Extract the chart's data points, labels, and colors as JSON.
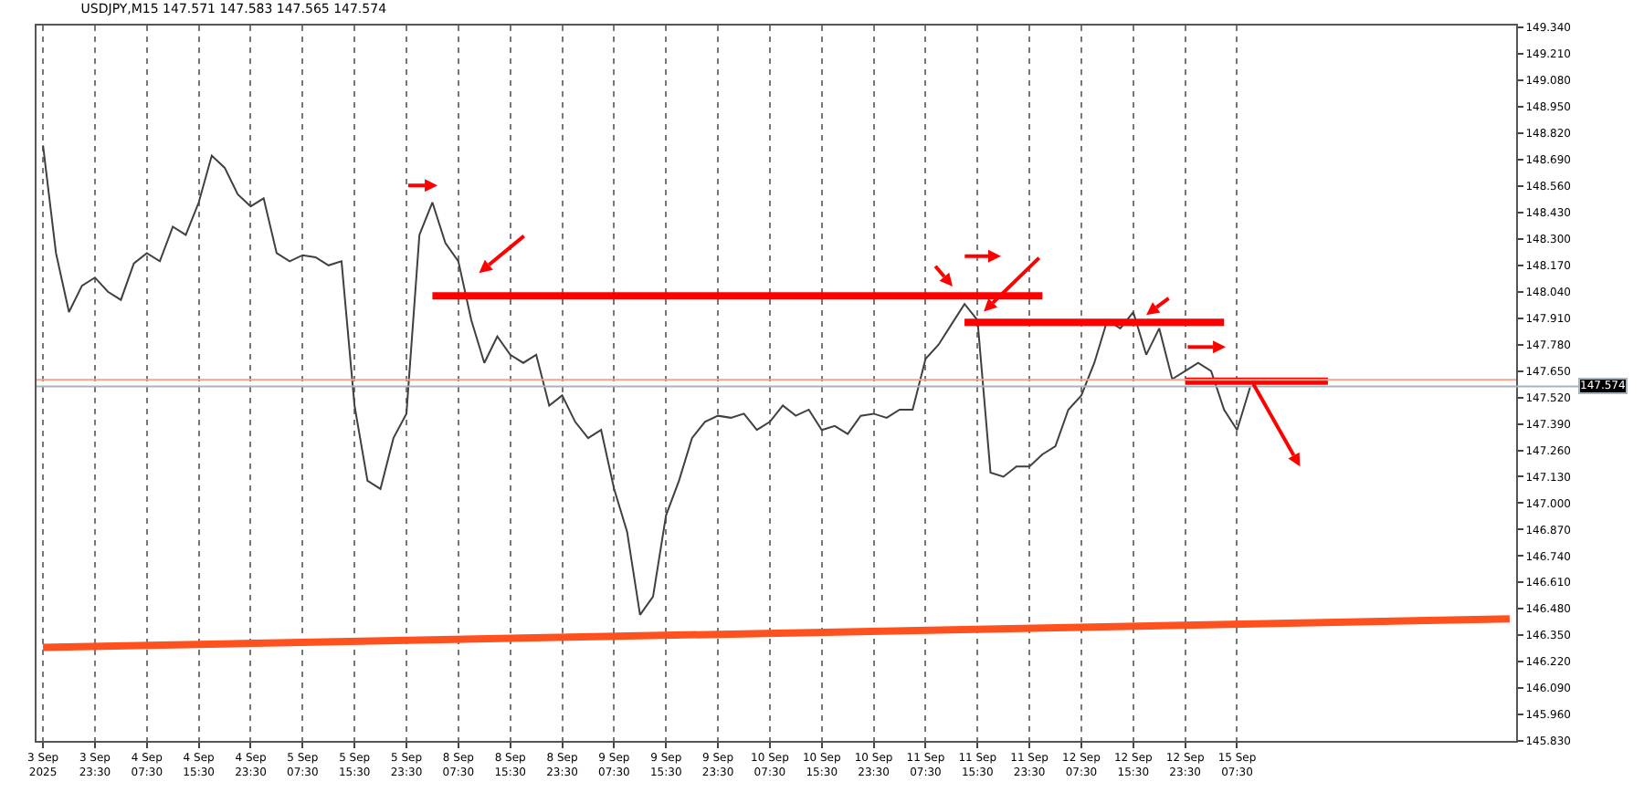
{
  "chart_data": {
    "type": "line",
    "title": "USDJPY,M15 147.571 147.583 147.565 147.574",
    "categories": [
      "3 Sep 2025",
      null,
      null,
      null,
      "3 Sep 23:30",
      null,
      null,
      null,
      "4 Sep 07:30",
      null,
      null,
      null,
      "4 Sep 15:30",
      null,
      null,
      null,
      "4 Sep 23:30",
      null,
      null,
      null,
      "5 Sep 07:30",
      null,
      null,
      null,
      "5 Sep 15:30",
      null,
      null,
      null,
      "5 Sep 23:30",
      null,
      null,
      null,
      "8 Sep 07:30",
      null,
      null,
      null,
      "8 Sep 15:30",
      null,
      null,
      null,
      "8 Sep 23:30",
      null,
      null,
      null,
      "9 Sep 07:30",
      null,
      null,
      null,
      "9 Sep 15:30",
      null,
      null,
      null,
      "9 Sep 23:30",
      null,
      null,
      null,
      "10 Sep 07:30",
      null,
      null,
      null,
      "10 Sep 15:30",
      null,
      null,
      null,
      "10 Sep 23:30",
      null,
      null,
      null,
      "11 Sep 07:30",
      null,
      null,
      null,
      "11 Sep 15:30",
      null,
      null,
      null,
      "11 Sep 23:30",
      null,
      null,
      null,
      "12 Sep 07:30",
      null,
      null,
      null,
      "12 Sep 15:30",
      null,
      null,
      null,
      "12 Sep 23:30",
      null,
      null,
      null,
      "15 Sep 07:30",
      null,
      null,
      null,
      null,
      null,
      null,
      null,
      null,
      null,
      null,
      null,
      null,
      null,
      null,
      null,
      null,
      null,
      null,
      null,
      null,
      null
    ],
    "series": [
      {
        "color": "#404040",
        "values": [
          148.76,
          148.23,
          147.94,
          148.07,
          148.11,
          148.04,
          148.0,
          148.18,
          148.23,
          148.19,
          148.36,
          148.32,
          148.48,
          148.71,
          148.65,
          148.52,
          148.46,
          148.5,
          148.23,
          148.19,
          148.22,
          148.21,
          148.17,
          148.19,
          147.48,
          147.11,
          147.07,
          147.32,
          147.44,
          148.32,
          148.48,
          148.28,
          148.19,
          147.9,
          147.69,
          147.82,
          147.73,
          147.69,
          147.73,
          147.48,
          147.53,
          147.4,
          147.32,
          147.36,
          147.07,
          146.86,
          146.45,
          146.54,
          146.94,
          147.11,
          147.32,
          147.4,
          147.43,
          147.42,
          147.44,
          147.36,
          147.4,
          147.48,
          147.43,
          147.46,
          147.36,
          147.38,
          147.34,
          147.43,
          147.44,
          147.42,
          147.46,
          147.46,
          147.71,
          147.78,
          147.88,
          147.98,
          147.9,
          147.15,
          147.13,
          147.18,
          147.18,
          147.24,
          147.28,
          147.46,
          147.53,
          147.69,
          147.9,
          147.86,
          147.94,
          147.73,
          147.86,
          147.61,
          147.65,
          147.69,
          147.65,
          147.46,
          147.36,
          147.57,
          null,
          null,
          null,
          null,
          null,
          null,
          null,
          null,
          null,
          null,
          null,
          null,
          null,
          null,
          null,
          null,
          null,
          null,
          null,
          null
        ]
      },
      {
        "type": "line",
        "color": "#ff0000",
        "values": [
          null,
          null,
          null,
          null,
          null,
          null,
          null,
          null,
          null,
          null,
          null,
          null,
          null,
          null,
          null,
          null,
          null,
          null,
          null,
          null,
          null,
          null,
          null,
          null,
          null,
          null,
          null,
          null,
          null,
          null,
          148.02,
          null,
          null,
          null,
          null,
          null,
          null,
          null,
          null,
          null,
          null,
          null,
          null,
          null,
          null,
          null,
          null,
          null,
          null,
          null,
          null,
          null,
          null,
          null,
          null,
          null,
          null,
          null,
          null,
          null,
          null,
          null,
          null,
          null,
          null,
          null,
          null,
          null,
          null,
          null,
          null,
          null,
          null,
          null,
          null,
          null,
          null,
          148.02,
          null,
          null,
          null,
          null,
          null,
          null,
          null,
          null,
          null,
          null,
          null,
          null,
          null,
          null,
          null,
          null,
          null,
          null,
          null,
          null,
          null,
          null,
          null,
          null,
          null,
          null,
          null,
          null,
          null,
          null,
          null,
          null,
          null,
          null,
          null,
          null
        ]
      },
      {
        "type": "line",
        "color": "#ff0000",
        "values": [
          null,
          null,
          null,
          null,
          null,
          null,
          null,
          null,
          null,
          null,
          null,
          null,
          null,
          null,
          null,
          null,
          null,
          null,
          null,
          null,
          null,
          null,
          null,
          null,
          null,
          null,
          null,
          null,
          null,
          null,
          null,
          null,
          null,
          null,
          null,
          null,
          null,
          null,
          null,
          null,
          null,
          null,
          null,
          null,
          null,
          null,
          null,
          null,
          null,
          null,
          null,
          null,
          null,
          null,
          null,
          null,
          null,
          null,
          null,
          null,
          null,
          null,
          null,
          null,
          null,
          null,
          null,
          null,
          null,
          null,
          null,
          147.89,
          null,
          null,
          null,
          null,
          null,
          null,
          null,
          null,
          null,
          null,
          null,
          null,
          null,
          null,
          null,
          null,
          null,
          null,
          null,
          147.89,
          null,
          null,
          null,
          null,
          null,
          null,
          null,
          null,
          null,
          null,
          null,
          null,
          null,
          null,
          null,
          null,
          null,
          null,
          null,
          null,
          null,
          null
        ]
      },
      {
        "type": "line",
        "color": "#ff0000",
        "values": [
          null,
          null,
          null,
          null,
          null,
          null,
          null,
          null,
          null,
          null,
          null,
          null,
          null,
          null,
          null,
          null,
          null,
          null,
          null,
          null,
          null,
          null,
          null,
          null,
          null,
          null,
          null,
          null,
          null,
          null,
          null,
          null,
          null,
          null,
          null,
          null,
          null,
          null,
          null,
          null,
          null,
          null,
          null,
          null,
          null,
          null,
          null,
          null,
          null,
          null,
          null,
          null,
          null,
          null,
          null,
          null,
          null,
          null,
          null,
          null,
          null,
          null,
          null,
          null,
          null,
          null,
          null,
          null,
          null,
          null,
          null,
          null,
          null,
          null,
          null,
          null,
          null,
          null,
          null,
          null,
          null,
          null,
          null,
          null,
          null,
          null,
          null,
          null,
          147.6,
          null,
          null,
          null,
          null,
          null,
          null,
          null,
          null,
          null,
          null,
          147.6,
          null,
          null,
          null,
          null,
          null,
          null,
          null,
          null,
          null,
          null,
          null,
          null,
          null,
          null
        ]
      },
      {
        "type": "line",
        "color": "#ff5020",
        "values": [
          146.29,
          null,
          null,
          null,
          null,
          null,
          null,
          null,
          null,
          null,
          null,
          null,
          null,
          null,
          null,
          null,
          null,
          null,
          null,
          null,
          null,
          null,
          null,
          null,
          null,
          null,
          null,
          null,
          null,
          null,
          null,
          null,
          null,
          null,
          null,
          null,
          null,
          null,
          null,
          null,
          null,
          null,
          null,
          null,
          null,
          null,
          null,
          null,
          null,
          null,
          null,
          null,
          null,
          null,
          null,
          null,
          null,
          null,
          null,
          null,
          null,
          null,
          null,
          null,
          null,
          null,
          null,
          null,
          null,
          null,
          null,
          null,
          null,
          null,
          null,
          null,
          null,
          null,
          null,
          null,
          null,
          null,
          null,
          null,
          null,
          null,
          null,
          null,
          null,
          null,
          null,
          null,
          null,
          null,
          null,
          null,
          null,
          null,
          null,
          null,
          null,
          null,
          null,
          null,
          null,
          null,
          null,
          null,
          null,
          null,
          null,
          null,
          null,
          146.43
        ]
      }
    ],
    "ref_lines": [
      {
        "axis": "y",
        "value": 147.607,
        "color": "#f5a58f"
      },
      {
        "axis": "y",
        "value": 147.574,
        "label": "147.574",
        "color": "#a8b4bc"
      }
    ],
    "ylim": [
      145.83,
      149.35
    ],
    "yticks": [
      {
        "value": 145.83,
        "label": "145.830"
      },
      {
        "value": 145.96,
        "label": "145.960"
      },
      {
        "value": 146.09,
        "label": "146.090"
      },
      {
        "value": 146.22,
        "label": "146.220"
      },
      {
        "value": 146.35,
        "label": "146.350"
      },
      {
        "value": 146.48,
        "label": "146.480"
      },
      {
        "value": 146.61,
        "label": "146.610"
      },
      {
        "value": 146.74,
        "label": "146.740"
      },
      {
        "value": 146.87,
        "label": "146.870"
      },
      {
        "value": 147.0,
        "label": "147.000"
      },
      {
        "value": 147.13,
        "label": "147.130"
      },
      {
        "value": 147.26,
        "label": "147.260"
      },
      {
        "value": 147.39,
        "label": "147.390"
      },
      {
        "value": 147.52,
        "label": "147.520"
      },
      {
        "value": 147.65,
        "label": "147.650"
      },
      {
        "value": 147.78,
        "label": "147.780"
      },
      {
        "value": 147.91,
        "label": "147.910"
      },
      {
        "value": 148.04,
        "label": "148.040"
      },
      {
        "value": 148.17,
        "label": "148.170"
      },
      {
        "value": 148.3,
        "label": "148.300"
      },
      {
        "value": 148.43,
        "label": "148.430"
      },
      {
        "value": 148.56,
        "label": "148.560"
      },
      {
        "value": 148.69,
        "label": "148.690"
      },
      {
        "value": 148.82,
        "label": "148.820"
      },
      {
        "value": 148.95,
        "label": "148.950"
      },
      {
        "value": 149.08,
        "label": "149.080"
      },
      {
        "value": 149.21,
        "label": "149.210"
      },
      {
        "value": 149.34,
        "label": "149.340"
      }
    ],
    "grid": "x"
  }
}
